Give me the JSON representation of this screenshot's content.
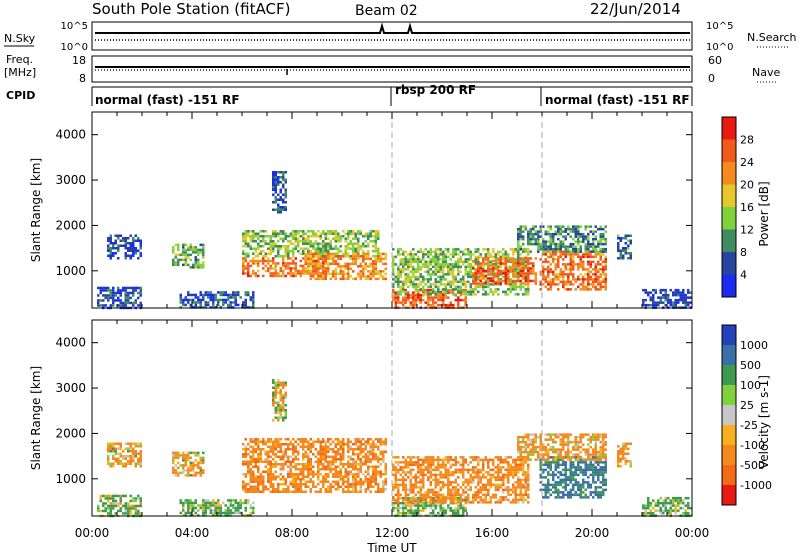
{
  "header": {
    "station": "South Pole Station (fitACF)",
    "beam": "Beam 02",
    "date": "22/Jun/2014"
  },
  "strips": {
    "nsky_label": "N.Sky",
    "nsearch_label": "N.Search",
    "freq_label_top": "Freq.",
    "freq_label_bottom": "[MHz]",
    "nave_label": "Nave",
    "cpid_label": "CPID",
    "noise_ticks_left": [
      "10^5",
      "10^0"
    ],
    "noise_ticks_right": [
      "10^5",
      "10^0"
    ],
    "freq_ticks": [
      "18",
      "8"
    ],
    "nave_ticks": [
      "60",
      "0"
    ],
    "cpid_segments": [
      {
        "label": "normal (fast) -151 RF",
        "start_hour": 0
      },
      {
        "label": "rbsp 200 RF",
        "start_hour": 12
      },
      {
        "label": "normal (fast) -151 RF",
        "start_hour": 18
      }
    ]
  },
  "axes": {
    "y_label": "Slant Range [km]",
    "x_label": "Time UT",
    "y_ticks": [
      "1000",
      "2000",
      "3000",
      "4000"
    ],
    "x_ticks": [
      "00:00",
      "04:00",
      "08:00",
      "12:00",
      "16:00",
      "20:00",
      "00:00"
    ]
  },
  "power_scale": {
    "label": "Power [dB]",
    "ticks": [
      "4",
      "8",
      "12",
      "16",
      "20",
      "24",
      "28"
    ],
    "colors": [
      "#1a2cf0",
      "#27459e",
      "#3f8c5e",
      "#7fd13e",
      "#e6c72e",
      "#f58a1e",
      "#f25a1a",
      "#e81a12"
    ]
  },
  "velocity_scale": {
    "label": "Velocity [m s-1]",
    "ticks": [
      "1000",
      "500",
      "100",
      "25",
      "-25",
      "-100",
      "-500",
      "-1000"
    ],
    "colors": [
      "#2341b8",
      "#3a6fa8",
      "#3f9a4e",
      "#7fd13e",
      "#c7c7c7",
      "#f5b21e",
      "#f5881e",
      "#f26a16",
      "#e81a12"
    ]
  },
  "chart_data": [
    {
      "type": "heatmap",
      "title": "South Pole Station (fitACF) Beam 02 22/Jun/2014",
      "quantity": "Power",
      "unit": "dB",
      "xlabel": "Time UT",
      "ylabel": "Slant Range [km]",
      "xlim_hours": [
        0,
        24
      ],
      "ylim_km": [
        180,
        4500
      ],
      "grid": false,
      "vertical_markers_hours": [
        12,
        18
      ],
      "colorbar_ticks": [
        4,
        8,
        12,
        16,
        20,
        24,
        28
      ],
      "regions": [
        {
          "t0": 0.2,
          "t1": 2.0,
          "r0": 200,
          "r1": 650,
          "db": 6
        },
        {
          "t0": 0.6,
          "t1": 2.0,
          "r0": 1300,
          "r1": 1800,
          "db": 5
        },
        {
          "t0": 3.2,
          "t1": 4.5,
          "r0": 1100,
          "r1": 1600,
          "db": 12
        },
        {
          "t0": 3.5,
          "t1": 6.5,
          "r0": 200,
          "r1": 550,
          "db": 6
        },
        {
          "t0": 6.0,
          "t1": 9.5,
          "r0": 900,
          "r1": 1300,
          "db": 24
        },
        {
          "t0": 6.0,
          "t1": 11.5,
          "r0": 1300,
          "r1": 1900,
          "db": 14
        },
        {
          "t0": 8.5,
          "t1": 11.8,
          "r0": 800,
          "r1": 1400,
          "db": 22
        },
        {
          "t0": 7.2,
          "t1": 7.8,
          "r0": 2300,
          "r1": 3200,
          "db": 5
        },
        {
          "t0": 12.0,
          "t1": 15.0,
          "r0": 200,
          "r1": 600,
          "db": 26
        },
        {
          "t0": 12.0,
          "t1": 17.5,
          "r0": 500,
          "r1": 1500,
          "db": 14
        },
        {
          "t0": 15.2,
          "t1": 17.8,
          "r0": 700,
          "r1": 1300,
          "db": 25
        },
        {
          "t0": 17.9,
          "t1": 20.6,
          "r0": 600,
          "r1": 1500,
          "db": 24
        },
        {
          "t0": 17.0,
          "t1": 20.6,
          "r0": 1400,
          "r1": 2000,
          "db": 10
        },
        {
          "t0": 21.0,
          "t1": 21.6,
          "r0": 1300,
          "r1": 1800,
          "db": 8
        },
        {
          "t0": 22.0,
          "t1": 24.0,
          "r0": 200,
          "r1": 600,
          "db": 5
        }
      ]
    },
    {
      "type": "heatmap",
      "quantity": "Velocity",
      "unit": "m s-1",
      "xlabel": "Time UT",
      "ylabel": "Slant Range [km]",
      "xlim_hours": [
        0,
        24
      ],
      "ylim_km": [
        180,
        4500
      ],
      "grid": false,
      "vertical_markers_hours": [
        12,
        18
      ],
      "colorbar_ticks": [
        1000,
        500,
        100,
        25,
        -25,
        -100,
        -500,
        -1000
      ],
      "regions": [
        {
          "t0": 0.2,
          "t1": 2.0,
          "r0": 200,
          "r1": 650,
          "v": 150
        },
        {
          "t0": 0.6,
          "t1": 2.0,
          "r0": 1300,
          "r1": 1800,
          "v": -150
        },
        {
          "t0": 3.2,
          "t1": 4.5,
          "r0": 1100,
          "r1": 1600,
          "v": -150
        },
        {
          "t0": 3.5,
          "t1": 6.5,
          "r0": 200,
          "r1": 550,
          "v": 200
        },
        {
          "t0": 6.0,
          "t1": 11.8,
          "r0": 700,
          "r1": 1900,
          "v": -300
        },
        {
          "t0": 7.2,
          "t1": 7.8,
          "r0": 2300,
          "r1": 3200,
          "v": 0
        },
        {
          "t0": 12.0,
          "t1": 15.0,
          "r0": 200,
          "r1": 600,
          "v": 200
        },
        {
          "t0": 12.0,
          "t1": 17.5,
          "r0": 500,
          "r1": 1500,
          "v": -300
        },
        {
          "t0": 17.9,
          "t1": 20.6,
          "r0": 600,
          "r1": 1500,
          "v": 600
        },
        {
          "t0": 17.0,
          "t1": 20.6,
          "r0": 1400,
          "r1": 2000,
          "v": -200
        },
        {
          "t0": 21.0,
          "t1": 21.6,
          "r0": 1300,
          "r1": 1800,
          "v": -200
        },
        {
          "t0": 22.0,
          "t1": 24.0,
          "r0": 200,
          "r1": 600,
          "v": 200
        }
      ]
    }
  ]
}
